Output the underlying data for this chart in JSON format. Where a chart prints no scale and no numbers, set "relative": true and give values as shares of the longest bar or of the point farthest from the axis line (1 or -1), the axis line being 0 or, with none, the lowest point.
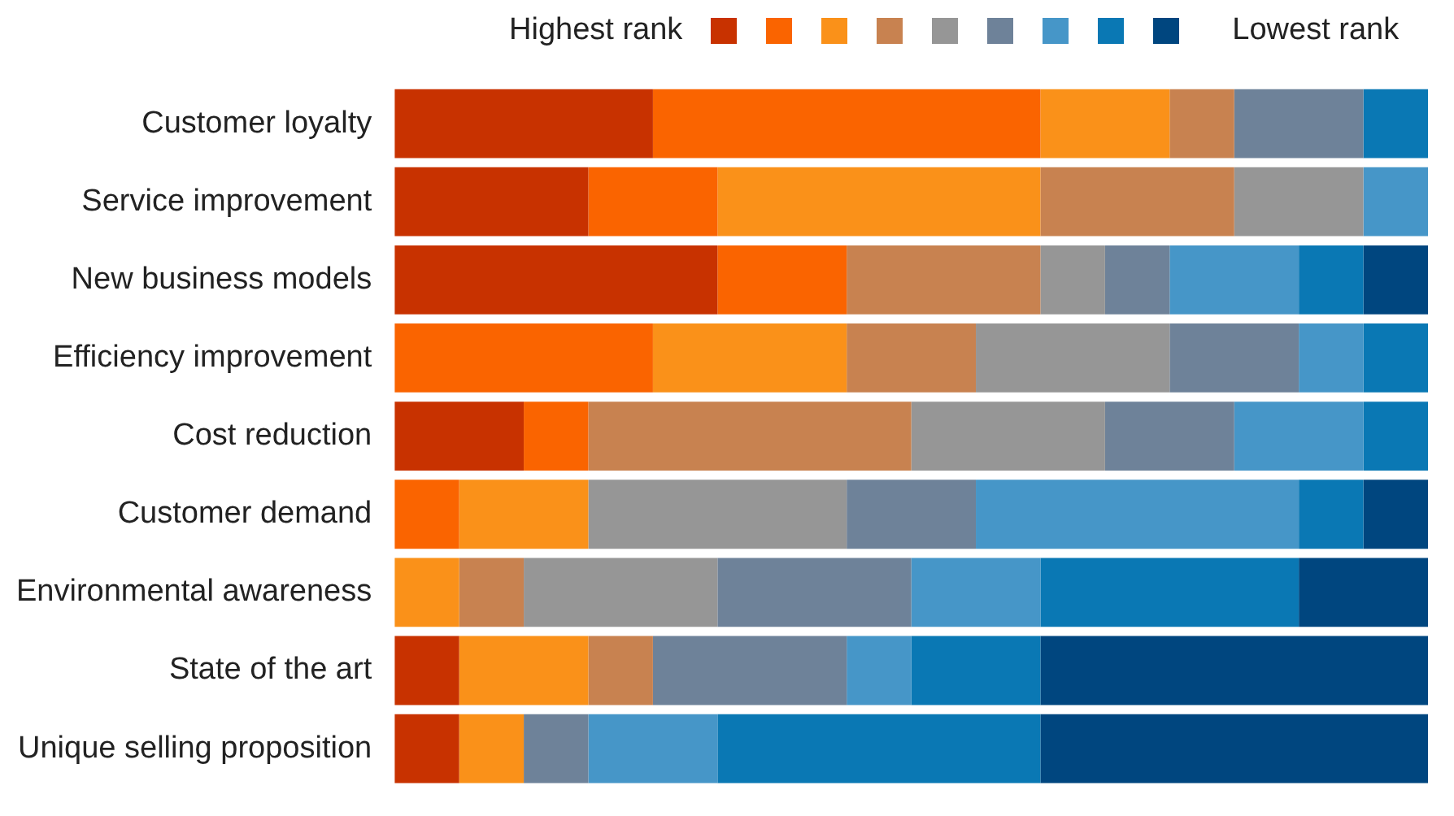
{
  "chart_data": {
    "type": "bar",
    "orientation": "horizontal",
    "stacked": true,
    "relative": true,
    "grid": false,
    "legend": "top",
    "categories": [
      "Customer loyalty",
      "Service improvement",
      "New business models",
      "Efficiency improvement",
      "Cost reduction",
      "Customer demand",
      "Environmental awareness",
      "State of the art",
      "Unique selling proposition"
    ],
    "series": [
      {
        "name": "Highest rank",
        "color": "#c83200",
        "values": [
          0.25,
          0.1875,
          0.3125,
          0,
          0.125,
          0,
          0,
          0.0625,
          0.0625
        ]
      },
      {
        "color": "#fa6400",
        "values": [
          0.375,
          0.125,
          0.125,
          0.25,
          0.0625,
          0.0625,
          0,
          0,
          0
        ]
      },
      {
        "color": "#fa9119",
        "values": [
          0.125,
          0.3125,
          0,
          0.1875,
          0,
          0.125,
          0.0625,
          0.125,
          0.0625
        ]
      },
      {
        "color": "#c88250",
        "values": [
          0.0625,
          0.1875,
          0.1875,
          0.125,
          0.3125,
          0,
          0.0625,
          0.0625,
          0
        ]
      },
      {
        "color": "#969696",
        "values": [
          0,
          0.125,
          0.0625,
          0.1875,
          0.1875,
          0.25,
          0.1875,
          0,
          0
        ]
      },
      {
        "color": "#6e8299",
        "values": [
          0.125,
          0,
          0.0625,
          0.125,
          0.125,
          0.125,
          0.1875,
          0.1875,
          0.0625
        ]
      },
      {
        "color": "#4696c8",
        "values": [
          0,
          0.0625,
          0.125,
          0.0625,
          0.125,
          0.3125,
          0.125,
          0.0625,
          0.125
        ]
      },
      {
        "color": "#0a78b4",
        "values": [
          0.0625,
          0,
          0.0625,
          0.0625,
          0.0625,
          0.0625,
          0.25,
          0.125,
          0.3125
        ]
      },
      {
        "name": "Lowest rank",
        "color": "#00467f",
        "values": [
          0,
          0,
          0.0625,
          0,
          0,
          0.0625,
          0.125,
          0.375,
          0.375
        ]
      }
    ]
  }
}
